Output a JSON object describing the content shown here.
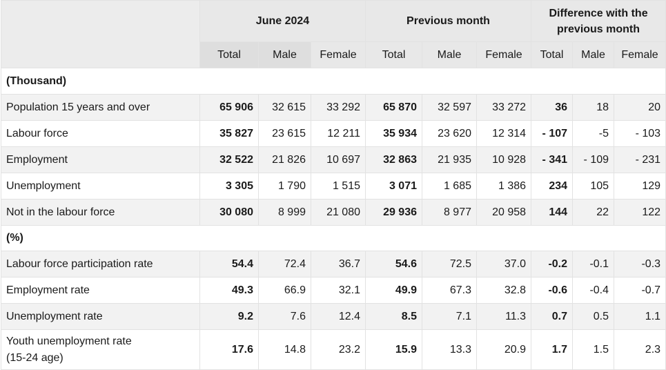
{
  "headers": {
    "group1": "June 2024",
    "group2": "Previous month",
    "group3": "Difference with the previous month",
    "sub": [
      "Total",
      "Male",
      "Female",
      "Total",
      "Male",
      "Female",
      "Total",
      "Male",
      "Female"
    ]
  },
  "sections": {
    "thousand": "(Thousand)",
    "percent": "(%)"
  },
  "rows": [
    {
      "label": "Population 15 years and over",
      "values": [
        "65 906",
        "32 615",
        "33 292",
        "65 870",
        "32 597",
        "33 272",
        "36",
        "18",
        "20"
      ]
    },
    {
      "label": "Labour force",
      "values": [
        "35 827",
        "23 615",
        "12 211",
        "35 934",
        "23 620",
        "12 314",
        "- 107",
        "-5",
        "- 103"
      ]
    },
    {
      "label": "Employment",
      "values": [
        "32 522",
        "21 826",
        "10 697",
        "32 863",
        "21 935",
        "10 928",
        "- 341",
        "- 109",
        "- 231"
      ]
    },
    {
      "label": "Unemployment",
      "values": [
        "3 305",
        "1 790",
        "1 515",
        "3 071",
        "1 685",
        "1 386",
        "234",
        "105",
        "129"
      ]
    },
    {
      "label": "Not in the labour force",
      "values": [
        "30 080",
        "8 999",
        "21 080",
        "29 936",
        "8 977",
        "20 958",
        "144",
        "22",
        "122"
      ]
    },
    {
      "label": "Labour force participation rate",
      "values": [
        "54.4",
        "72.4",
        "36.7",
        "54.6",
        "72.5",
        "37.0",
        "-0.2",
        "-0.1",
        "-0.3"
      ]
    },
    {
      "label": "Employment rate",
      "values": [
        "49.3",
        "66.9",
        "32.1",
        "49.9",
        "67.3",
        "32.8",
        "-0.6",
        "-0.4",
        "-0.7"
      ]
    },
    {
      "label": "Unemployment rate",
      "values": [
        "9.2",
        "7.6",
        "12.4",
        "8.5",
        "7.1",
        "11.3",
        "0.7",
        "0.5",
        "1.1"
      ]
    },
    {
      "label": "Youth unemployment rate\n(15-24 age)",
      "label_line1": "Youth unemployment rate",
      "label_line2": "(15-24 age)",
      "values": [
        "17.6",
        "14.8",
        "23.2",
        "15.9",
        "13.3",
        "20.9",
        "1.7",
        "1.5",
        "2.3"
      ]
    }
  ]
}
